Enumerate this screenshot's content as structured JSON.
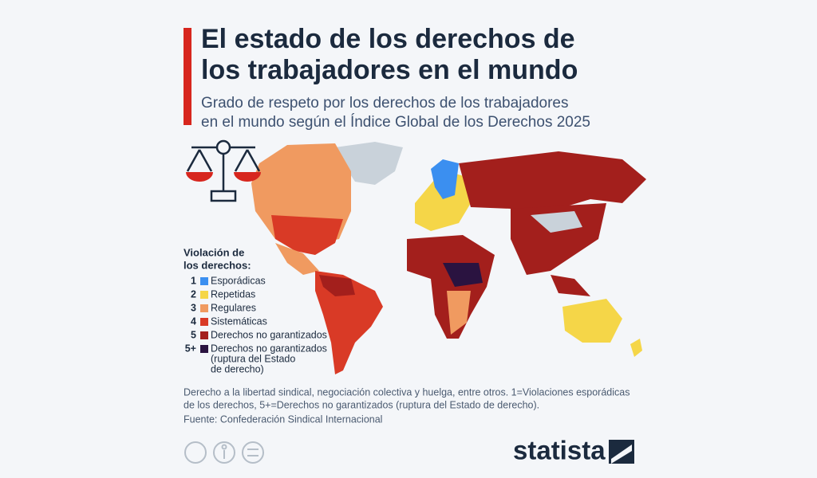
{
  "header": {
    "title_lines": [
      "El estado de los derechos de",
      "los trabajadores en el mundo"
    ],
    "subtitle_lines": [
      "Grado de respeto por los derechos de los trabajadores",
      "en el mundo según el Índice Global de los Derechos 2025"
    ]
  },
  "legend": {
    "title_lines": [
      "Violación de",
      "los derechos:"
    ],
    "items": [
      {
        "code": "1",
        "color": "#3b8ff0",
        "label_lines": [
          "Esporádicas"
        ]
      },
      {
        "code": "2",
        "color": "#f5d648",
        "label_lines": [
          "Repetidas"
        ]
      },
      {
        "code": "3",
        "color": "#f09a60",
        "label_lines": [
          "Regulares"
        ]
      },
      {
        "code": "4",
        "color": "#d93a26",
        "label_lines": [
          "Sistemáticas"
        ]
      },
      {
        "code": "5",
        "color": "#a31f1c",
        "label_lines": [
          "Derechos no garantizados"
        ]
      },
      {
        "code": "5+",
        "color": "#2a1340",
        "label_lines": [
          "Derechos no garantizados",
          "(ruptura del Estado",
          "de derecho)"
        ]
      }
    ]
  },
  "footer": {
    "note_lines": [
      "Derecho a la libertad sindical, negociación colectiva y huelga, entre otros. 1=Violaciones esporádicas",
      "de los derechos, 5+=Derechos no garantizados (ruptura del Estado de derecho)."
    ],
    "source": "Fuente: Confederación Sindical Internacional",
    "brand": "statista"
  }
}
